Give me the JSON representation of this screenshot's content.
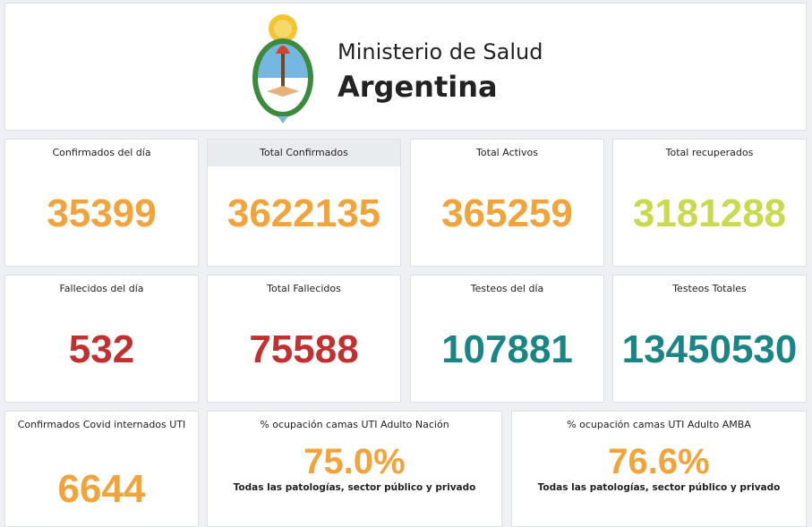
{
  "header": {
    "title": "Ministerio de Salud",
    "subtitle": "Argentina"
  },
  "cards": [
    {
      "label": "Confirmados del día",
      "value": "35399"
    },
    {
      "label": "Total Confirmados",
      "value": "3622135"
    },
    {
      "label": "Total Activos",
      "value": "365259"
    },
    {
      "label": "Total recuperados",
      "value": "3181288"
    },
    {
      "label": "Fallecidos del día",
      "value": "532"
    },
    {
      "label": "Total Fallecidos",
      "value": "75588"
    },
    {
      "label": "Testeos del día",
      "value": "107881"
    },
    {
      "label": "Testeos Totales",
      "value": "13450530"
    },
    {
      "label": "Confirmados Covid internados UTI",
      "value": "6644"
    },
    {
      "label": "% ocupación camas UTI Adulto Nación",
      "value": "75.0%",
      "note": "Todas las patologías, sector público y privado"
    },
    {
      "label": "% ocupación camas UTI Adulto AMBA",
      "value": "76.6%",
      "note": "Todas las patologías, sector público y privado"
    }
  ]
}
